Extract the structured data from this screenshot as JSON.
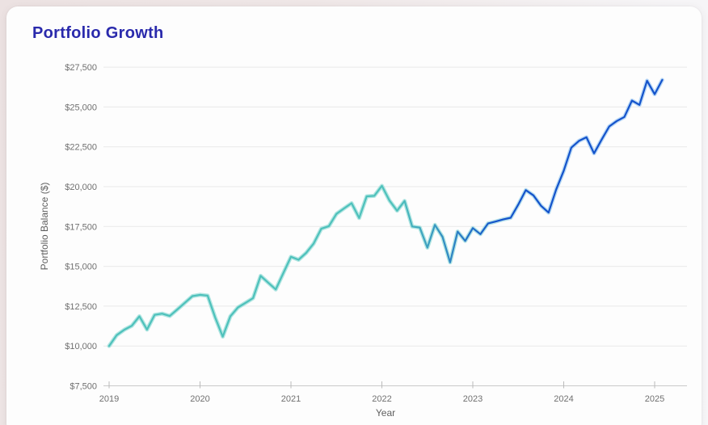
{
  "header": {
    "title": "Portfolio Growth"
  },
  "theme": {
    "title_color": "#2a2aac",
    "card_background": "#fdfdfd",
    "page_background": "#efe7e7",
    "grid_color": "#e9e9e9",
    "axis_line_color": "#c9c9c9",
    "tick_mark_color": "#bbbbbb",
    "tick_label_color": "#707070",
    "line_teal": "#4ec1bb",
    "line_blue": "#1453cb",
    "halo_teal": "#92dcd7",
    "halo_blue": "#9cc8f4"
  },
  "chart_data": {
    "type": "line",
    "title": "Portfolio Growth",
    "xlabel": "Year",
    "ylabel": "Portfolio Balance ($)",
    "legend": false,
    "grid": true,
    "ylim": [
      7500,
      27500
    ],
    "y_ticks": [
      {
        "value": 7500,
        "label": "$7,500"
      },
      {
        "value": 10000,
        "label": "$10,000"
      },
      {
        "value": 12500,
        "label": "$12,500"
      },
      {
        "value": 15000,
        "label": "$15,000"
      },
      {
        "value": 17500,
        "label": "$17,500"
      },
      {
        "value": 20000,
        "label": "$20,000"
      },
      {
        "value": 22500,
        "label": "$22,500"
      },
      {
        "value": 25000,
        "label": "$25,000"
      },
      {
        "value": 27500,
        "label": "$27,500"
      }
    ],
    "x_ticks": [
      {
        "value": 2019,
        "label": "2019"
      },
      {
        "value": 2020,
        "label": "2020"
      },
      {
        "value": 2021,
        "label": "2021"
      },
      {
        "value": 2022,
        "label": "2022"
      },
      {
        "value": 2023,
        "label": "2023"
      },
      {
        "value": 2024,
        "label": "2024"
      },
      {
        "value": 2025,
        "label": "2025"
      }
    ],
    "series": [
      {
        "name": "Portfolio Balance",
        "start_year": 2019,
        "interval_months": 1,
        "values": [
          10000,
          10680,
          11020,
          11270,
          11860,
          11030,
          11950,
          12030,
          11880,
          12290,
          12710,
          13130,
          13210,
          13160,
          11780,
          10590,
          11860,
          12420,
          12710,
          13000,
          14400,
          13970,
          13550,
          14580,
          15600,
          15410,
          15840,
          16430,
          17360,
          17520,
          18290,
          18630,
          18960,
          18030,
          19390,
          19420,
          20050,
          19130,
          18490,
          19100,
          17500,
          17430,
          16170,
          17600,
          16850,
          15250,
          17180,
          16590,
          17400,
          17020,
          17690,
          17810,
          17940,
          18050,
          18880,
          19780,
          19450,
          18800,
          18370,
          19810,
          21000,
          22450,
          22870,
          23100,
          22090,
          22950,
          23780,
          24120,
          24370,
          25400,
          25130,
          26650,
          25800,
          26700
        ]
      }
    ]
  }
}
